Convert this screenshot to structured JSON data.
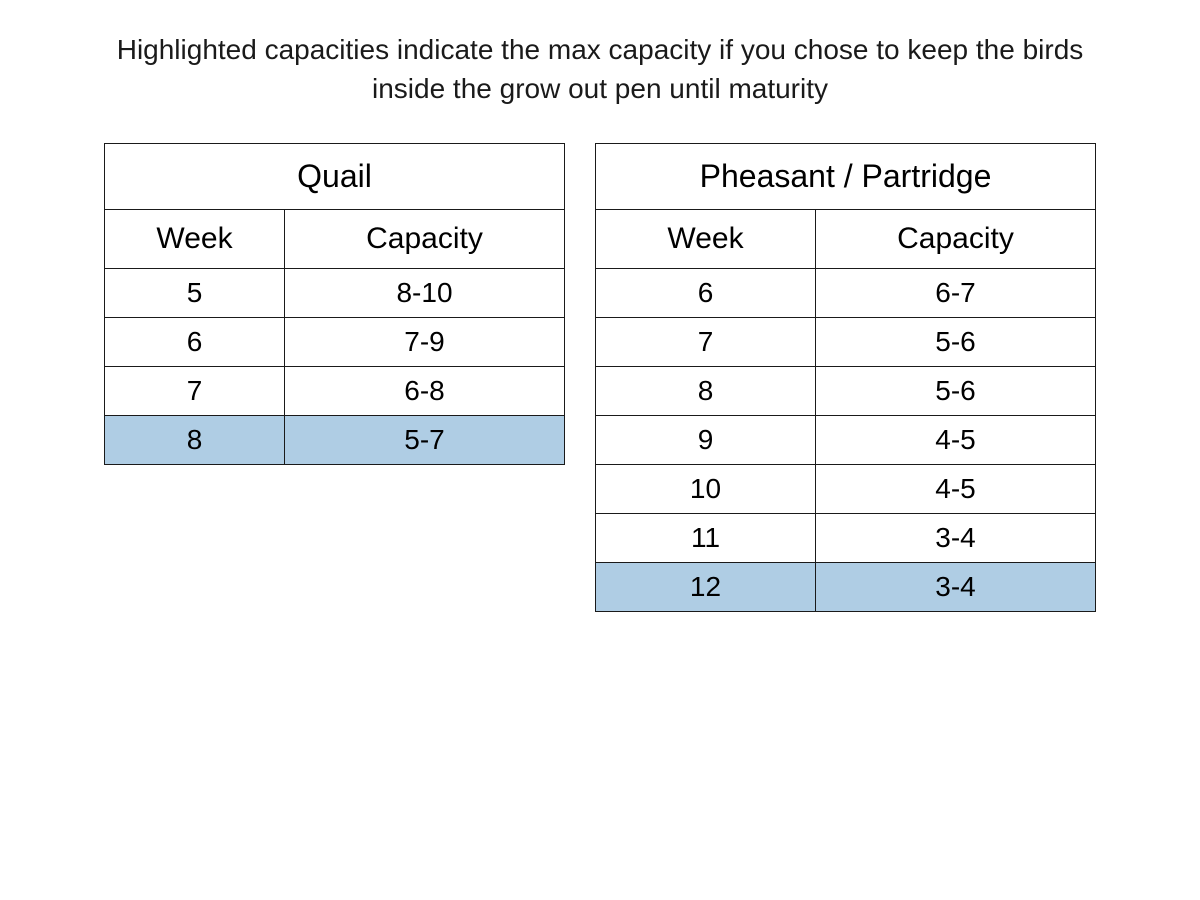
{
  "description": "Highlighted capacities indicate the max capacity if you chose to keep the birds inside the grow out pen until maturity",
  "tables": {
    "left": {
      "title": "Quail",
      "columns": [
        "Week",
        "Capacity"
      ],
      "rows": [
        {
          "week": "5",
          "capacity": "8-10",
          "highlighted": false
        },
        {
          "week": "6",
          "capacity": "7-9",
          "highlighted": false
        },
        {
          "week": "7",
          "capacity": "6-8",
          "highlighted": false
        },
        {
          "week": "8",
          "capacity": "5-7",
          "highlighted": true
        }
      ]
    },
    "right": {
      "title": "Pheasant / Partridge",
      "columns": [
        "Week",
        "Capacity"
      ],
      "rows": [
        {
          "week": "6",
          "capacity": "6-7",
          "highlighted": false
        },
        {
          "week": "7",
          "capacity": "5-6",
          "highlighted": false
        },
        {
          "week": "8",
          "capacity": "5-6",
          "highlighted": false
        },
        {
          "week": "9",
          "capacity": "4-5",
          "highlighted": false
        },
        {
          "week": "10",
          "capacity": "4-5",
          "highlighted": false
        },
        {
          "week": "11",
          "capacity": "3-4",
          "highlighted": false
        },
        {
          "week": "12",
          "capacity": "3-4",
          "highlighted": true
        }
      ]
    }
  },
  "colors": {
    "highlight": "#afcde4",
    "border": "#1a1a1a",
    "text": "#1a1a1a",
    "background": "#ffffff"
  }
}
